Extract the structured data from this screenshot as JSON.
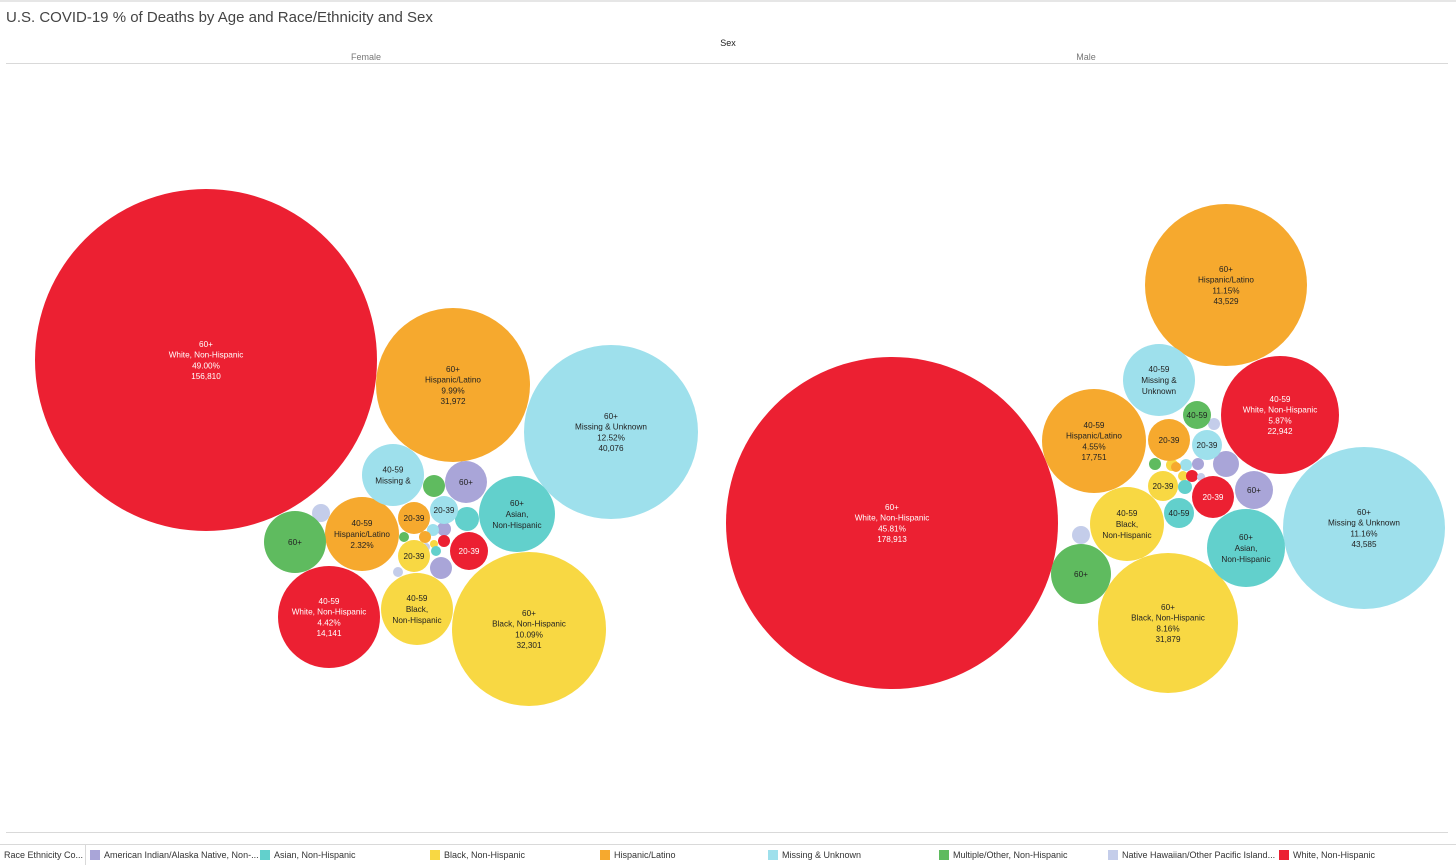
{
  "title": "U.S. COVID-19 % of Deaths by Age and Race/Ethnicity and Sex",
  "column_header": "Sex",
  "panels": [
    "Female",
    "Male"
  ],
  "colors": {
    "American Indian/Alaska Native, Non-Hispanic": "#a9a5d8",
    "Asian, Non-Hispanic": "#62d0cc",
    "Black, Non-Hispanic": "#f8d843",
    "Hispanic/Latino": "#f6a92e",
    "Missing & Unknown": "#9ee0ec",
    "Multiple/Other, Non-Hispanic": "#5fbb5f",
    "Native Hawaiian/Other Pacific Islander, Non-Hispanic": "#c4cdea",
    "White, Non-Hispanic": "#ec2032"
  },
  "legend": {
    "title": "Race Ethnicity Co...",
    "items": [
      {
        "label": "American Indian/Alaska Native, Non-...",
        "key": "American Indian/Alaska Native, Non-Hispanic"
      },
      {
        "label": "Asian, Non-Hispanic",
        "key": "Asian, Non-Hispanic"
      },
      {
        "label": "Black, Non-Hispanic",
        "key": "Black, Non-Hispanic"
      },
      {
        "label": "Hispanic/Latino",
        "key": "Hispanic/Latino"
      },
      {
        "label": "Missing & Unknown",
        "key": "Missing & Unknown"
      },
      {
        "label": "Multiple/Other, Non-Hispanic",
        "key": "Multiple/Other, Non-Hispanic"
      },
      {
        "label": "Native Hawaiian/Other Pacific Island...",
        "key": "Native Hawaiian/Other Pacific Islander, Non-Hispanic"
      },
      {
        "label": "White, Non-Hispanic",
        "key": "White, Non-Hispanic"
      }
    ]
  },
  "chart_data": {
    "type": "packed-bubble",
    "title": "U.S. COVID-19 % of Deaths by Age and Race/Ethnicity and Sex",
    "size_measure": "Deaths",
    "panels": [
      {
        "name": "Female",
        "bubbles": [
          {
            "age": "60+",
            "race": "White, Non-Hispanic",
            "pct": "49.00%",
            "deaths": 156810,
            "label": [
              "60+",
              "White, Non-Hispanic",
              "49.00%",
              "156,810"
            ]
          },
          {
            "age": "60+",
            "race": "Hispanic/Latino",
            "pct": "9.99%",
            "deaths": 31972,
            "label": [
              "60+",
              "Hispanic/Latino",
              "9.99%",
              "31,972"
            ]
          },
          {
            "age": "60+",
            "race": "Missing & Unknown",
            "pct": "12.52%",
            "deaths": 40076,
            "label": [
              "60+",
              "Missing & Unknown",
              "12.52%",
              "40,076"
            ]
          },
          {
            "age": "60+",
            "race": "Black, Non-Hispanic",
            "pct": "10.09%",
            "deaths": 32301,
            "label": [
              "60+",
              "Black, Non-Hispanic",
              "10.09%",
              "32,301"
            ]
          },
          {
            "age": "40-59",
            "race": "White, Non-Hispanic",
            "pct": "4.42%",
            "deaths": 14141,
            "label": [
              "40-59",
              "White, Non-Hispanic",
              "4.42%",
              "14,141"
            ]
          },
          {
            "age": "40-59",
            "race": "Hispanic/Latino",
            "pct": "2.32%",
            "label": [
              "40-59",
              "Hispanic/Latino",
              "2.32%"
            ]
          },
          {
            "age": "60+",
            "race": "Asian, Non-Hispanic",
            "label": [
              "60+",
              "Asian,",
              "Non-Hispanic"
            ]
          },
          {
            "age": "40-59",
            "race": "Black, Non-Hispanic",
            "label": [
              "40-59",
              "Black,",
              "Non-Hispanic"
            ]
          },
          {
            "age": "40-59",
            "race": "Missing & Unknown",
            "label": [
              "40-59",
              "Missing &"
            ]
          },
          {
            "age": "60+",
            "race": "Multiple/Other, Non-Hispanic",
            "label": [
              "60+"
            ]
          },
          {
            "age": "60+",
            "race": "American Indian/Alaska Native, Non-Hispanic",
            "label": [
              "60+"
            ]
          },
          {
            "age": "20-39",
            "race": "Hispanic/Latino",
            "label": [
              "20-39"
            ]
          },
          {
            "age": "20-39",
            "race": "Missing & Unknown",
            "label": [
              "20-39"
            ]
          },
          {
            "age": "20-39",
            "race": "White, Non-Hispanic",
            "label": [
              "20-39"
            ]
          },
          {
            "age": "20-39",
            "race": "Black, Non-Hispanic",
            "label": [
              "20-39"
            ]
          }
        ]
      },
      {
        "name": "Male",
        "bubbles": [
          {
            "age": "60+",
            "race": "White, Non-Hispanic",
            "pct": "45.81%",
            "deaths": 178913,
            "label": [
              "60+",
              "White, Non-Hispanic",
              "45.81%",
              "178,913"
            ]
          },
          {
            "age": "60+",
            "race": "Hispanic/Latino",
            "pct": "11.15%",
            "deaths": 43529,
            "label": [
              "60+",
              "Hispanic/Latino",
              "11.15%",
              "43,529"
            ]
          },
          {
            "age": "60+",
            "race": "Missing & Unknown",
            "pct": "11.16%",
            "deaths": 43585,
            "label": [
              "60+",
              "Missing & Unknown",
              "11.16%",
              "43,585"
            ]
          },
          {
            "age": "60+",
            "race": "Black, Non-Hispanic",
            "pct": "8.16%",
            "deaths": 31879,
            "label": [
              "60+",
              "Black, Non-Hispanic",
              "8.16%",
              "31,879"
            ]
          },
          {
            "age": "40-59",
            "race": "White, Non-Hispanic",
            "pct": "5.87%",
            "deaths": 22942,
            "label": [
              "40-59",
              "White, Non-Hispanic",
              "5.87%",
              "22,942"
            ]
          },
          {
            "age": "40-59",
            "race": "Hispanic/Latino",
            "pct": "4.55%",
            "deaths": 17751,
            "label": [
              "40-59",
              "Hispanic/Latino",
              "4.55%",
              "17,751"
            ]
          },
          {
            "age": "40-59",
            "race": "Missing & Unknown",
            "label": [
              "40-59",
              "Missing &",
              "Unknown"
            ]
          },
          {
            "age": "40-59",
            "race": "Black, Non-Hispanic",
            "label": [
              "40-59",
              "Black,",
              "Non-Hispanic"
            ]
          },
          {
            "age": "60+",
            "race": "Asian, Non-Hispanic",
            "label": [
              "60+",
              "Asian,",
              "Non-Hispanic"
            ]
          },
          {
            "age": "60+",
            "race": "Multiple/Other, Non-Hispanic",
            "label": [
              "60+"
            ]
          },
          {
            "age": "60+",
            "race": "American Indian/Alaska Native, Non-Hispanic",
            "label": [
              "60+"
            ]
          },
          {
            "age": "40-59",
            "race": "Multiple/Other, Non-Hispanic",
            "label": [
              "40-59"
            ]
          },
          {
            "age": "40-59",
            "race": "Asian, Non-Hispanic",
            "label": [
              "40-59"
            ]
          },
          {
            "age": "20-39",
            "race": "Hispanic/Latino",
            "label": [
              "20-39"
            ]
          },
          {
            "age": "20-39",
            "race": "Missing & Unknown",
            "label": [
              "20-39"
            ]
          },
          {
            "age": "20-39",
            "race": "Black, Non-Hispanic",
            "label": [
              "20-39"
            ]
          },
          {
            "age": "20-39",
            "race": "White, Non-Hispanic",
            "label": [
              "20-39"
            ]
          }
        ]
      }
    ]
  }
}
